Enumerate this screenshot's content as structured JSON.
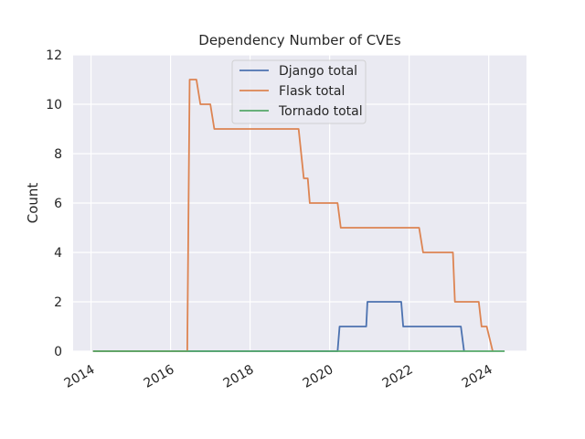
{
  "chart_data": {
    "type": "line",
    "title": "Dependency Number of CVEs",
    "xlabel": "",
    "ylabel": "Count",
    "xlim": [
      2013.55,
      2024.95
    ],
    "ylim": [
      0,
      12
    ],
    "x_ticks": [
      2014,
      2016,
      2018,
      2020,
      2022,
      2024
    ],
    "x_tick_labels": [
      "2014",
      "2016",
      "2018",
      "2020",
      "2022",
      "2024"
    ],
    "y_ticks": [
      0,
      2,
      4,
      6,
      8,
      10,
      12
    ],
    "y_tick_labels": [
      "0",
      "2",
      "4",
      "6",
      "8",
      "10",
      "12"
    ],
    "grid": true,
    "legend_position": "top-center",
    "series": [
      {
        "name": "Django total",
        "color": "#4c72b0",
        "x": [
          2014.05,
          2020.2,
          2020.25,
          2020.92,
          2020.95,
          2021.8,
          2021.85,
          2023.3,
          2023.38
        ],
        "y": [
          0,
          0,
          1,
          1,
          2,
          2,
          1,
          1,
          0
        ]
      },
      {
        "name": "Flask total",
        "color": "#dd8452",
        "x": [
          2014.05,
          2016.42,
          2016.48,
          2016.65,
          2016.75,
          2017.0,
          2017.1,
          2019.22,
          2019.35,
          2019.45,
          2019.5,
          2020.2,
          2020.28,
          2022.25,
          2022.35,
          2023.1,
          2023.15,
          2023.75,
          2023.82,
          2023.95,
          2024.1
        ],
        "y": [
          0,
          0,
          11,
          11,
          10,
          10,
          9,
          9,
          7,
          7,
          6,
          6,
          5,
          5,
          4,
          4,
          2,
          2,
          1,
          1,
          0
        ]
      },
      {
        "name": "Tornado total",
        "color": "#55a868",
        "x": [
          2014.05,
          2024.4
        ],
        "y": [
          0,
          0
        ]
      }
    ]
  }
}
